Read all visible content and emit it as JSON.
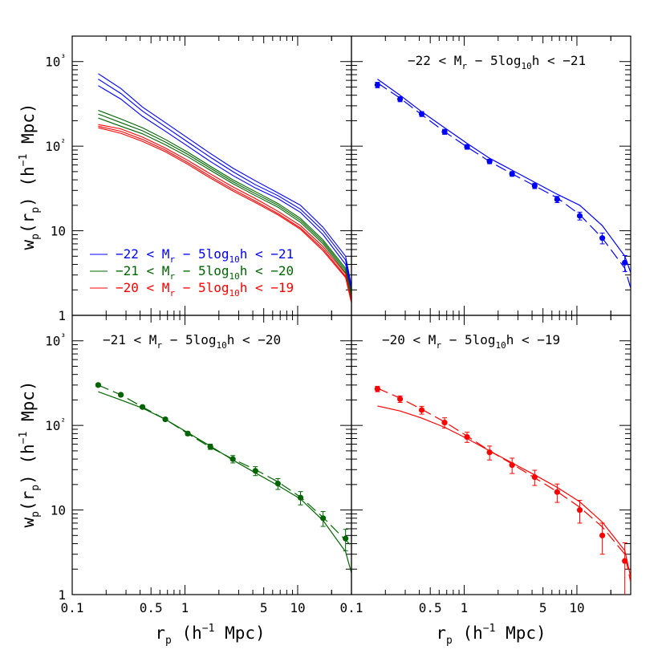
{
  "figure": {
    "ylabel_main": "w",
    "ylabel_sub": "p",
    "ylabel_tail": "(r",
    "ylabel_tail_sub": "p",
    "ylabel_units": ") (h",
    "ylabel_exp": "−1",
    "ylabel_end": " Mpc)",
    "xlabel_main": "r",
    "xlabel_sub": "p",
    "xlabel_units": " (h",
    "xlabel_exp": "−1",
    "xlabel_end": " Mpc)"
  },
  "colors": {
    "blue": "#0000ff",
    "green": "#006400",
    "red": "#ff0000",
    "axis": "#000000"
  },
  "chart_data": [
    {
      "panel": "top-left",
      "type": "line",
      "xscale": "log",
      "yscale": "log",
      "xlim": [
        0.1,
        30
      ],
      "ylim": [
        1,
        2000
      ],
      "x_ticklabels": [],
      "y_ticklabels": [
        "1",
        "10",
        "10²",
        "10³"
      ],
      "legend": [
        {
          "color": "blue",
          "text": "−22 < M",
          "sub": "r",
          "mid": " − 5log",
          "sub2": "10",
          "end": "h < −21"
        },
        {
          "color": "green",
          "text": "−21 < M",
          "sub": "r",
          "mid": " − 5log",
          "sub2": "10",
          "end": "h < −20"
        },
        {
          "color": "red",
          "text": "−20 < M",
          "sub": "r",
          "mid": " − 5log",
          "sub2": "10",
          "end": "h < −19"
        }
      ],
      "x": [
        0.17,
        0.27,
        0.42,
        0.67,
        1.06,
        1.68,
        2.66,
        4.22,
        6.68,
        10.6,
        16.8,
        26.6,
        30
      ],
      "series": [
        {
          "color": "blue",
          "values": [
            720,
            480,
            290,
            190,
            125,
            82,
            55,
            39,
            28,
            20,
            11,
            5,
            2.2
          ]
        },
        {
          "color": "blue",
          "values": [
            620,
            420,
            260,
            170,
            112,
            74,
            50,
            35,
            26,
            18,
            10,
            4.5,
            2.0
          ]
        },
        {
          "color": "blue",
          "values": [
            520,
            360,
            225,
            150,
            100,
            66,
            45,
            32,
            24,
            16.5,
            9,
            4.0,
            1.9
          ]
        },
        {
          "color": "green",
          "values": [
            265,
            210,
            165,
            120,
            85,
            58,
            40,
            29,
            21,
            14,
            7.8,
            3.6,
            1.8
          ]
        },
        {
          "color": "green",
          "values": [
            240,
            190,
            152,
            112,
            80,
            55,
            38,
            27.5,
            20,
            13.3,
            7.4,
            3.4,
            1.7
          ]
        },
        {
          "color": "green",
          "values": [
            215,
            172,
            140,
            104,
            75,
            52,
            36,
            26,
            19,
            12.6,
            7.0,
            3.2,
            1.6
          ]
        },
        {
          "color": "red",
          "values": [
            180,
            160,
            128,
            95,
            68,
            47,
            33,
            24,
            17,
            11.5,
            6.5,
            3.1,
            1.5
          ]
        },
        {
          "color": "red",
          "values": [
            172,
            150,
            120,
            90,
            64,
            44,
            31,
            22.5,
            16,
            10.8,
            6.1,
            2.9,
            1.45
          ]
        },
        {
          "color": "red",
          "values": [
            165,
            142,
            114,
            86,
            61,
            42,
            29.5,
            21.5,
            15.4,
            10.4,
            5.8,
            2.8,
            1.4
          ]
        }
      ]
    },
    {
      "panel": "top-right",
      "type": "line",
      "title": "−22 < M",
      "title_sub": "r",
      "title_mid": " − 5log",
      "title_sub2": "10",
      "title_end": "h < −21",
      "xscale": "log",
      "yscale": "log",
      "xlim": [
        0.1,
        30
      ],
      "ylim": [
        1,
        2000
      ],
      "x_ticklabels": [],
      "y_ticklabels": [],
      "color": "blue",
      "points": {
        "x": [
          0.17,
          0.27,
          0.42,
          0.67,
          1.06,
          1.68,
          2.66,
          4.22,
          6.68,
          10.6,
          16.8,
          26.6
        ],
        "y": [
          530,
          360,
          240,
          148,
          98,
          66,
          47,
          34,
          23.5,
          15,
          8.2,
          4.2
        ],
        "err": [
          40,
          25,
          16,
          10,
          6,
          4,
          3,
          2.5,
          2,
          1.6,
          1.2,
          0.9
        ]
      },
      "solid": {
        "x": [
          0.17,
          0.27,
          0.42,
          0.67,
          1.06,
          1.68,
          2.66,
          4.22,
          6.68,
          10.6,
          16.8,
          26.6,
          30
        ],
        "y": [
          620,
          400,
          255,
          165,
          108,
          72,
          52,
          37.5,
          27,
          20,
          11.5,
          5,
          3.2
        ]
      },
      "dashed": {
        "x": [
          0.17,
          0.27,
          0.42,
          0.67,
          1.06,
          1.68,
          2.66,
          4.22,
          6.68,
          10.6,
          16.8,
          26.6,
          30
        ],
        "y": [
          560,
          370,
          235,
          148,
          98,
          66,
          47,
          34,
          24.5,
          15.5,
          8.2,
          3.6,
          2.1
        ]
      }
    },
    {
      "panel": "bottom-left",
      "type": "line",
      "title": "−21 < M",
      "title_sub": "r",
      "title_mid": " − 5log",
      "title_sub2": "10",
      "title_end": "h < −20",
      "xscale": "log",
      "yscale": "log",
      "xlim": [
        0.1,
        30
      ],
      "ylim": [
        1,
        2000
      ],
      "x_ticklabels": [
        "0.1",
        "0.5",
        "1",
        "5",
        "10"
      ],
      "y_ticklabels": [
        "1",
        "10",
        "10²",
        "10³"
      ],
      "color": "green",
      "points": {
        "x": [
          0.17,
          0.27,
          0.42,
          0.67,
          1.06,
          1.68,
          2.66,
          4.22,
          6.68,
          10.6,
          16.8,
          26.6
        ],
        "y": [
          300,
          230,
          165,
          118,
          80,
          56,
          40,
          29,
          20.5,
          14,
          8,
          4.6
        ],
        "err": [
          12,
          10,
          7,
          5,
          4,
          4,
          4,
          3.5,
          3,
          2.5,
          1.6,
          1.3
        ]
      },
      "solid": {
        "x": [
          0.17,
          0.27,
          0.42,
          0.67,
          1.06,
          1.68,
          2.66,
          4.22,
          6.68,
          10.6,
          16.8,
          26.6,
          30
        ],
        "y": [
          250,
          200,
          160,
          118,
          82,
          57,
          39,
          27.5,
          19.5,
          13.5,
          7.5,
          3.2,
          1.8
        ]
      },
      "dashed": {
        "x": [
          0.17,
          0.27,
          0.42,
          0.67,
          1.06,
          1.68,
          2.66,
          4.22,
          6.68,
          10.6,
          16.8,
          26.6,
          30
        ],
        "y": [
          300,
          230,
          165,
          118,
          80,
          55,
          40,
          30,
          21.5,
          14.2,
          8.2,
          4.4,
          3.8
        ]
      }
    },
    {
      "panel": "bottom-right",
      "type": "line",
      "title": "−20 < M",
      "title_sub": "r",
      "title_mid": " − 5log",
      "title_sub2": "10",
      "title_end": "h < −19",
      "xscale": "log",
      "yscale": "log",
      "xlim": [
        0.1,
        30
      ],
      "ylim": [
        1,
        2000
      ],
      "x_ticklabels": [
        "0.1",
        "0.5",
        "1",
        "5",
        "10"
      ],
      "y_ticklabels": [],
      "color": "red",
      "points": {
        "x": [
          0.17,
          0.27,
          0.42,
          0.67,
          1.06,
          1.68,
          2.66,
          4.22,
          6.68,
          10.6,
          16.8,
          26.6
        ],
        "y": [
          270,
          205,
          152,
          108,
          73,
          48,
          34,
          24.5,
          16.3,
          10,
          5,
          2.5
        ],
        "err": [
          20,
          18,
          16,
          15,
          10,
          9,
          7,
          5,
          4,
          3,
          2,
          1.6
        ]
      },
      "solid": {
        "x": [
          0.17,
          0.27,
          0.42,
          0.67,
          1.06,
          1.68,
          2.66,
          4.22,
          6.68,
          10.6,
          16.8,
          26.6,
          30
        ],
        "y": [
          170,
          148,
          122,
          95,
          70,
          50,
          36,
          26,
          18.5,
          12.5,
          7.2,
          3.3,
          1.6
        ]
      },
      "dashed": {
        "x": [
          0.17,
          0.27,
          0.42,
          0.67,
          1.06,
          1.68,
          2.66,
          4.22,
          6.68,
          10.6,
          16.8,
          26.6,
          30
        ],
        "y": [
          275,
          210,
          155,
          110,
          75,
          50,
          35,
          24,
          16.5,
          10.8,
          6.3,
          3,
          1.4
        ]
      }
    }
  ]
}
